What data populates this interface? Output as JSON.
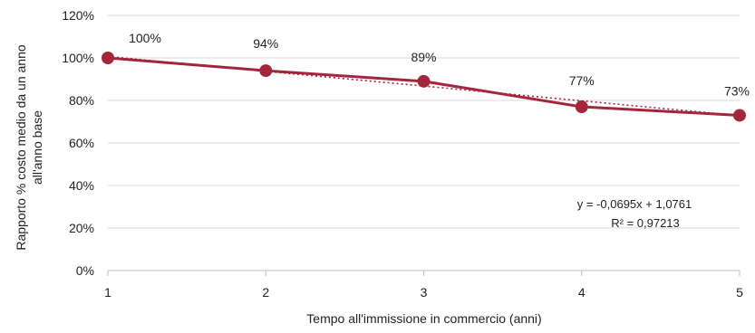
{
  "chart_data": {
    "type": "line",
    "x": [
      1,
      2,
      3,
      4,
      5
    ],
    "series": [
      {
        "values": [
          1.0,
          0.94,
          0.89,
          0.77,
          0.73
        ],
        "data_labels": [
          "100%",
          "94%",
          "89%",
          "77%",
          "73%"
        ],
        "color": "#a3263c",
        "marker": "circle"
      }
    ],
    "trendline": {
      "type": "linear",
      "slope": -0.0695,
      "intercept": 1.0761,
      "style": "dotted",
      "color": "#a3263c",
      "equation": "y = -0,0695x + 1,0761",
      "r_squared": "R² = 0,97213"
    },
    "xlabel": "Tempo all'immissione in commercio (anni)",
    "ylabel_line1": "Rapporto % costo medio da un anno",
    "ylabel_line2": "all'anno base",
    "xlim": [
      1,
      5
    ],
    "ylim": [
      0,
      1.2
    ],
    "x_ticks": [
      1,
      2,
      3,
      4,
      5
    ],
    "x_tick_labels": [
      "1",
      "2",
      "3",
      "4",
      "5"
    ],
    "y_ticks": [
      0,
      0.2,
      0.4,
      0.6,
      0.8,
      1.0,
      1.2
    ],
    "y_tick_labels": [
      "0%",
      "20%",
      "40%",
      "60%",
      "80%",
      "100%",
      "120%"
    ],
    "grid": "horizontal",
    "grid_color": "#d9d9d9",
    "legend": "none"
  }
}
